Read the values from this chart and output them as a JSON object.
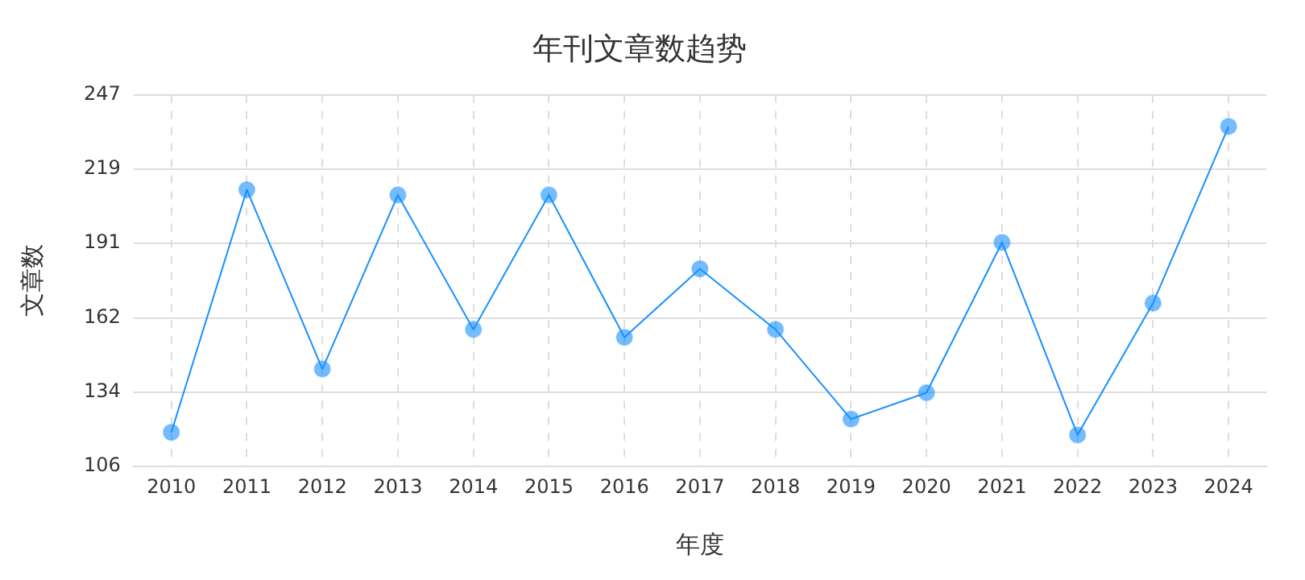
{
  "chart_data": {
    "type": "line",
    "title": "年刊文章数趋势",
    "xlabel": "年度",
    "ylabel": "文章数",
    "categories": [
      "2010",
      "2011",
      "2012",
      "2013",
      "2014",
      "2015",
      "2016",
      "2017",
      "2018",
      "2019",
      "2020",
      "2021",
      "2022",
      "2023",
      "2024"
    ],
    "series": [
      {
        "color": "#1890ff",
        "values": [
          119,
          211,
          143,
          209,
          158,
          209,
          155,
          181,
          158,
          124,
          134,
          191,
          118,
          168,
          235
        ]
      }
    ],
    "ylim": [
      106,
      247
    ],
    "yticks": [
      106,
      {
        "value": 134.2,
        "label": "134"
      },
      {
        "value": 162.4,
        "label": "162"
      },
      {
        "value": 190.6,
        "label": "191"
      },
      {
        "value": 218.8,
        "label": "219"
      },
      247
    ],
    "grid": true,
    "legend": false,
    "marker": "circle",
    "line_style": "solid"
  }
}
